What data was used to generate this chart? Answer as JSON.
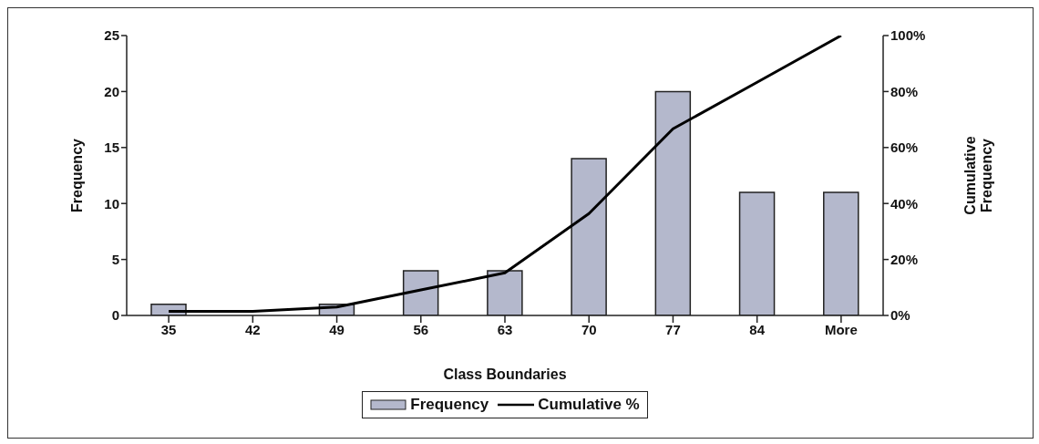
{
  "chart_data": {
    "type": "bar",
    "xlabel": "Class Boundaries",
    "ylabel": "Frequency",
    "y2label": "Cumulative Frequency",
    "categories": [
      "35",
      "42",
      "49",
      "56",
      "63",
      "70",
      "77",
      "84",
      "More"
    ],
    "series": [
      {
        "name": "Frequency",
        "color": "#b4b8cc",
        "values": [
          1,
          0,
          1,
          4,
          4,
          14,
          20,
          11,
          11
        ]
      },
      {
        "name": "Cumulative %",
        "type": "line",
        "axis": "y2",
        "color": "#000000",
        "values": [
          1.5,
          1.5,
          3.0,
          9.1,
          15.2,
          36.4,
          66.7,
          83.3,
          100
        ]
      }
    ],
    "ylim": [
      0,
      25
    ],
    "yticks": [
      0,
      5,
      10,
      15,
      20,
      25
    ],
    "y2lim": [
      0,
      100
    ],
    "y2ticks": [
      {
        "value": 0,
        "label": "0%"
      },
      {
        "value": 20,
        "label": "20%"
      },
      {
        "value": 40,
        "label": "40%"
      },
      {
        "value": 60,
        "label": "60%"
      },
      {
        "value": 80,
        "label": "80%"
      },
      {
        "value": 100,
        "label": "100%"
      }
    ],
    "grid": false,
    "legend": "bottom",
    "marker": "none",
    "line_style": "solid"
  }
}
